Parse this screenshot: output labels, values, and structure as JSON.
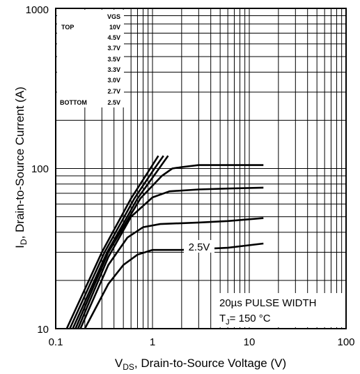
{
  "chart_data": {
    "type": "line",
    "xscale": "log",
    "yscale": "log",
    "xlim": [
      0.1,
      100
    ],
    "ylim": [
      10,
      1000
    ],
    "grid": true,
    "xlabel_main": "V",
    "xlabel_sub": "DS",
    "xlabel_rest": ", Drain-to-Source Voltage (V)",
    "ylabel_main": "I",
    "ylabel_sub": "D",
    "ylabel_rest": ",  Drain-to-Source Current (A)",
    "xticks": [
      "0.1",
      "1",
      "10",
      "100"
    ],
    "yticks": [
      "10",
      "100",
      "1000"
    ],
    "legend": {
      "header": "VGS",
      "top_label": "TOP",
      "bottom_label": "BOTTOM",
      "values": [
        "10V",
        "4.5V",
        "3.7V",
        "3.5V",
        "3.3V",
        "3.0V",
        "2.7V",
        "2.5V"
      ]
    },
    "annotations": {
      "pulse": "20µs PULSE WIDTH",
      "tj_main": "T",
      "tj_sub": "J",
      "tj_rest": "= 150 °C",
      "curve_label": "2.5V"
    },
    "series": [
      {
        "x": [
          0.13,
          0.3,
          0.6,
          1.0,
          1.15
        ],
        "y": [
          10,
          30,
          65,
          105,
          120
        ]
      },
      {
        "x": [
          0.14,
          0.32,
          0.65,
          1.05,
          1.3
        ],
        "y": [
          10,
          30,
          65,
          100,
          120
        ]
      },
      {
        "x": [
          0.15,
          0.34,
          0.7,
          1.1,
          1.45
        ],
        "y": [
          10,
          30,
          65,
          95,
          120
        ]
      },
      {
        "x": [
          0.16,
          0.35,
          0.75,
          1.25,
          1.6,
          2,
          3,
          6,
          14
        ],
        "y": [
          10,
          30,
          65,
          90,
          100,
          102,
          105,
          105,
          105
        ]
      },
      {
        "x": [
          0.17,
          0.35,
          0.6,
          1.0,
          1.5,
          3,
          6,
          14
        ],
        "y": [
          10,
          28,
          50,
          66,
          72,
          74,
          75,
          76
        ]
      },
      {
        "x": [
          0.18,
          0.35,
          0.55,
          0.8,
          1.2,
          3,
          6,
          14
        ],
        "y": [
          10,
          25,
          37,
          43,
          45,
          46,
          47,
          49
        ]
      },
      {
        "x": [
          0.2,
          0.35,
          0.5,
          0.7,
          1.0,
          2,
          6,
          14
        ],
        "y": [
          10,
          19,
          25,
          29,
          31,
          31,
          32,
          34
        ]
      }
    ]
  }
}
